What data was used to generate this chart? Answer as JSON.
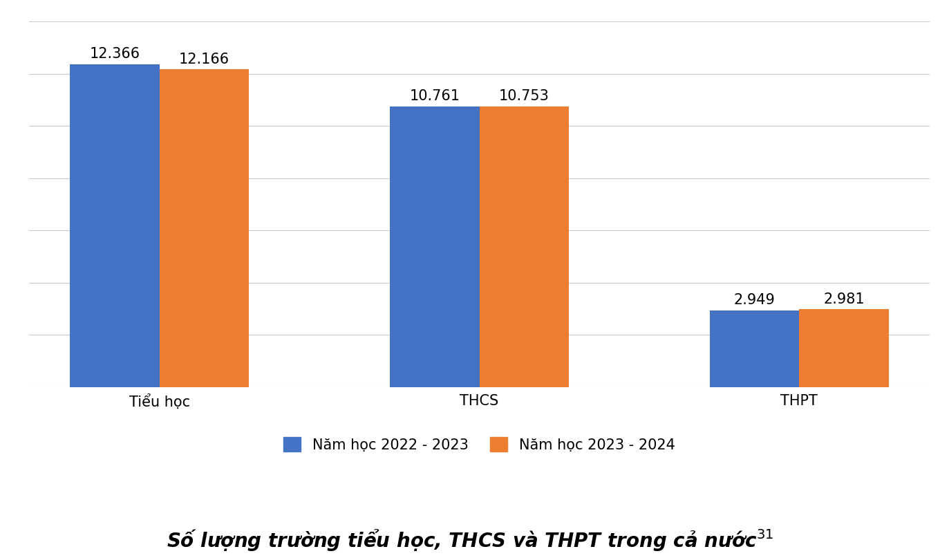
{
  "categories": [
    "Tiểu học",
    "THCS",
    "THPT"
  ],
  "series": [
    {
      "label": "Năm học 2022 - 2023",
      "values": [
        12366,
        10761,
        2949
      ],
      "color": "#4472C4"
    },
    {
      "label": "Năm học 2023 - 2024",
      "values": [
        12166,
        10753,
        2981
      ],
      "color": "#ED7D31"
    }
  ],
  "value_labels": [
    [
      "12.366",
      "12.166"
    ],
    [
      "10.761",
      "10.753"
    ],
    [
      "2.949",
      "2.981"
    ]
  ],
  "title": "Số lượng trường tiểu học, THCS và THPT trong cả nước",
  "title_superscript": "31",
  "ylim": [
    0,
    14000
  ],
  "yticks": [
    0,
    2000,
    4000,
    6000,
    8000,
    10000,
    12000,
    14000
  ],
  "bar_width": 0.28,
  "background_color": "#FFFFFF",
  "grid_color": "#CCCCCC",
  "tick_fontsize": 15,
  "legend_fontsize": 15,
  "title_fontsize": 20,
  "value_fontsize": 15
}
